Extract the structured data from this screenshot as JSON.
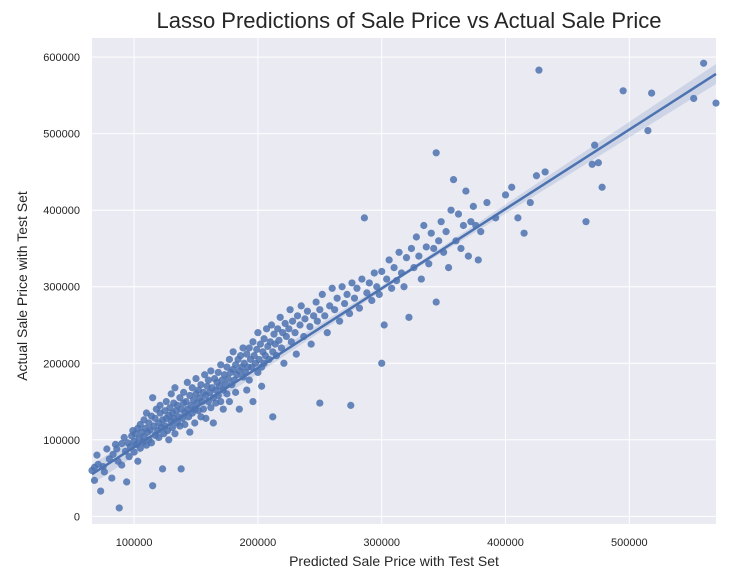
{
  "chart_data": {
    "type": "scatter",
    "title": "Lasso Predictions of Sale Price vs Actual Sale Price",
    "xlabel": "Predicted Sale Price with Test Set",
    "ylabel": "Actual Sale Price with Test Set",
    "xlim": [
      66000,
      570000
    ],
    "ylim": [
      -10000,
      625000
    ],
    "xticks": [
      100000,
      200000,
      300000,
      400000,
      500000
    ],
    "yticks": [
      0,
      100000,
      200000,
      300000,
      400000,
      500000,
      600000
    ],
    "grid": true,
    "legend": "none",
    "regression_line": {
      "x": [
        66000,
        570000
      ],
      "y": [
        55000,
        578000
      ]
    },
    "colors": {
      "point": "#4c72b0",
      "line": "#4c72b0",
      "band": "#4c72b0",
      "plot_bg": "#eaeaf2",
      "grid": "#ffffff"
    },
    "points": [
      [
        66000,
        60000
      ],
      [
        68000,
        64000
      ],
      [
        68000,
        47000
      ],
      [
        70000,
        80000
      ],
      [
        71000,
        68000
      ],
      [
        73000,
        33000
      ],
      [
        75000,
        65000
      ],
      [
        76000,
        58000
      ],
      [
        78000,
        88000
      ],
      [
        80000,
        75000
      ],
      [
        82000,
        50000
      ],
      [
        83000,
        81000
      ],
      [
        85000,
        94000
      ],
      [
        86000,
        88000
      ],
      [
        87000,
        72000
      ],
      [
        88000,
        11000
      ],
      [
        90000,
        95000
      ],
      [
        90000,
        67000
      ],
      [
        92000,
        103000
      ],
      [
        93000,
        85000
      ],
      [
        94000,
        45000
      ],
      [
        95000,
        96000
      ],
      [
        96000,
        78000
      ],
      [
        97000,
        91000
      ],
      [
        98000,
        105000
      ],
      [
        99000,
        112000
      ],
      [
        100000,
        98000
      ],
      [
        100000,
        84000
      ],
      [
        101000,
        108000
      ],
      [
        102000,
        94000
      ],
      [
        103000,
        115000
      ],
      [
        103000,
        72000
      ],
      [
        104000,
        102000
      ],
      [
        105000,
        120000
      ],
      [
        105000,
        89000
      ],
      [
        106000,
        110000
      ],
      [
        107000,
        97000
      ],
      [
        108000,
        126000
      ],
      [
        108000,
        104000
      ],
      [
        109000,
        115000
      ],
      [
        110000,
        93000
      ],
      [
        110000,
        135000
      ],
      [
        111000,
        110000
      ],
      [
        112000,
        122000
      ],
      [
        112000,
        100000
      ],
      [
        113000,
        113000
      ],
      [
        114000,
        131000
      ],
      [
        114000,
        96000
      ],
      [
        115000,
        155000
      ],
      [
        115000,
        40000
      ],
      [
        116000,
        118000
      ],
      [
        117000,
        106000
      ],
      [
        117000,
        128000
      ],
      [
        118000,
        140000
      ],
      [
        119000,
        112000
      ],
      [
        120000,
        122000
      ],
      [
        120000,
        103000
      ],
      [
        121000,
        135000
      ],
      [
        121000,
        145000
      ],
      [
        122000,
        116000
      ],
      [
        123000,
        126000
      ],
      [
        123000,
        62000
      ],
      [
        124000,
        108000
      ],
      [
        125000,
        138000
      ],
      [
        125000,
        118000
      ],
      [
        126000,
        128000
      ],
      [
        126000,
        150000
      ],
      [
        127000,
        112000
      ],
      [
        128000,
        132000
      ],
      [
        128000,
        100000
      ],
      [
        129000,
        142000
      ],
      [
        130000,
        124000
      ],
      [
        130000,
        160000
      ],
      [
        131000,
        116000
      ],
      [
        131000,
        135000
      ],
      [
        132000,
        148000
      ],
      [
        132000,
        128000
      ],
      [
        133000,
        108000
      ],
      [
        133000,
        168000
      ],
      [
        134000,
        138000
      ],
      [
        135000,
        122000
      ],
      [
        135000,
        145000
      ],
      [
        136000,
        130000
      ],
      [
        137000,
        155000
      ],
      [
        137000,
        118000
      ],
      [
        138000,
        140000
      ],
      [
        138000,
        62000
      ],
      [
        139000,
        128000
      ],
      [
        140000,
        148000
      ],
      [
        140000,
        162000
      ],
      [
        141000,
        135000
      ],
      [
        141000,
        120000
      ],
      [
        142000,
        150000
      ],
      [
        143000,
        140000
      ],
      [
        143000,
        175000
      ],
      [
        144000,
        130000
      ],
      [
        145000,
        158000
      ],
      [
        145000,
        110000
      ],
      [
        146000,
        145000
      ],
      [
        147000,
        135000
      ],
      [
        147000,
        168000
      ],
      [
        148000,
        152000
      ],
      [
        149000,
        140000
      ],
      [
        149000,
        122000
      ],
      [
        150000,
        160000
      ],
      [
        150000,
        180000
      ],
      [
        151000,
        148000
      ],
      [
        152000,
        138000
      ],
      [
        152000,
        165000
      ],
      [
        153000,
        155000
      ],
      [
        154000,
        130000
      ],
      [
        154000,
        172000
      ],
      [
        155000,
        150000
      ],
      [
        156000,
        162000
      ],
      [
        156000,
        140000
      ],
      [
        157000,
        185000
      ],
      [
        158000,
        158000
      ],
      [
        158000,
        128000
      ],
      [
        159000,
        170000
      ],
      [
        160000,
        150000
      ],
      [
        160000,
        178000
      ],
      [
        161000,
        162000
      ],
      [
        162000,
        142000
      ],
      [
        162000,
        190000
      ],
      [
        163000,
        168000
      ],
      [
        164000,
        155000
      ],
      [
        164000,
        122000
      ],
      [
        165000,
        180000
      ],
      [
        166000,
        165000
      ],
      [
        166000,
        148000
      ],
      [
        167000,
        175000
      ],
      [
        168000,
        188000
      ],
      [
        168000,
        158000
      ],
      [
        169000,
        170000
      ],
      [
        170000,
        150000
      ],
      [
        170000,
        198000
      ],
      [
        171000,
        178000
      ],
      [
        172000,
        165000
      ],
      [
        172000,
        140000
      ],
      [
        173000,
        185000
      ],
      [
        174000,
        172000
      ],
      [
        175000,
        195000
      ],
      [
        175000,
        160000
      ],
      [
        176000,
        180000
      ],
      [
        177000,
        150000
      ],
      [
        177000,
        205000
      ],
      [
        178000,
        188000
      ],
      [
        179000,
        172000
      ],
      [
        180000,
        192000
      ],
      [
        180000,
        215000
      ],
      [
        181000,
        178000
      ],
      [
        182000,
        198000
      ],
      [
        182000,
        162000
      ],
      [
        183000,
        185000
      ],
      [
        184000,
        205000
      ],
      [
        185000,
        190000
      ],
      [
        185000,
        140000
      ],
      [
        186000,
        210000
      ],
      [
        187000,
        195000
      ],
      [
        188000,
        182000
      ],
      [
        188000,
        220000
      ],
      [
        189000,
        200000
      ],
      [
        190000,
        188000
      ],
      [
        191000,
        212000
      ],
      [
        191000,
        165000
      ],
      [
        192000,
        195000
      ],
      [
        193000,
        220000
      ],
      [
        193000,
        178000
      ],
      [
        194000,
        205000
      ],
      [
        195000,
        195000
      ],
      [
        196000,
        228000
      ],
      [
        196000,
        150000
      ],
      [
        197000,
        210000
      ],
      [
        198000,
        200000
      ],
      [
        199000,
        218000
      ],
      [
        200000,
        188000
      ],
      [
        200000,
        240000
      ],
      [
        201000,
        205000
      ],
      [
        202000,
        225000
      ],
      [
        203000,
        195000
      ],
      [
        203000,
        170000
      ],
      [
        204000,
        215000
      ],
      [
        205000,
        232000
      ],
      [
        205000,
        200000
      ],
      [
        206000,
        210000
      ],
      [
        207000,
        245000
      ],
      [
        208000,
        222000
      ],
      [
        209000,
        205000
      ],
      [
        210000,
        228000
      ],
      [
        211000,
        250000
      ],
      [
        212000,
        215000
      ],
      [
        212000,
        130000
      ],
      [
        213000,
        238000
      ],
      [
        214000,
        225000
      ],
      [
        215000,
        210000
      ],
      [
        216000,
        245000
      ],
      [
        217000,
        230000
      ],
      [
        218000,
        260000
      ],
      [
        219000,
        220000
      ],
      [
        220000,
        240000
      ],
      [
        221000,
        200000
      ],
      [
        222000,
        252000
      ],
      [
        223000,
        235000
      ],
      [
        225000,
        245000
      ],
      [
        226000,
        270000
      ],
      [
        227000,
        228000
      ],
      [
        228000,
        255000
      ],
      [
        230000,
        240000
      ],
      [
        231000,
        212000
      ],
      [
        232000,
        262000
      ],
      [
        234000,
        250000
      ],
      [
        235000,
        275000
      ],
      [
        237000,
        235000
      ],
      [
        238000,
        258000
      ],
      [
        240000,
        268000
      ],
      [
        242000,
        248000
      ],
      [
        243000,
        225000
      ],
      [
        245000,
        262000
      ],
      [
        247000,
        280000
      ],
      [
        248000,
        255000
      ],
      [
        250000,
        148000
      ],
      [
        250000,
        270000
      ],
      [
        252000,
        290000
      ],
      [
        254000,
        262000
      ],
      [
        256000,
        240000
      ],
      [
        258000,
        275000
      ],
      [
        260000,
        298000
      ],
      [
        262000,
        270000
      ],
      [
        264000,
        285000
      ],
      [
        266000,
        255000
      ],
      [
        268000,
        300000
      ],
      [
        270000,
        278000
      ],
      [
        272000,
        290000
      ],
      [
        274000,
        265000
      ],
      [
        275000,
        145000
      ],
      [
        276000,
        305000
      ],
      [
        278000,
        285000
      ],
      [
        280000,
        298000
      ],
      [
        282000,
        272000
      ],
      [
        284000,
        310000
      ],
      [
        286000,
        390000
      ],
      [
        288000,
        292000
      ],
      [
        290000,
        305000
      ],
      [
        292000,
        282000
      ],
      [
        294000,
        318000
      ],
      [
        296000,
        300000
      ],
      [
        298000,
        290000
      ],
      [
        300000,
        200000
      ],
      [
        300000,
        320000
      ],
      [
        302000,
        250000
      ],
      [
        304000,
        310000
      ],
      [
        306000,
        335000
      ],
      [
        308000,
        298000
      ],
      [
        310000,
        325000
      ],
      [
        312000,
        308000
      ],
      [
        314000,
        345000
      ],
      [
        316000,
        318000
      ],
      [
        318000,
        300000
      ],
      [
        320000,
        338000
      ],
      [
        322000,
        260000
      ],
      [
        324000,
        350000
      ],
      [
        326000,
        325000
      ],
      [
        328000,
        365000
      ],
      [
        330000,
        340000
      ],
      [
        332000,
        310000
      ],
      [
        334000,
        380000
      ],
      [
        336000,
        352000
      ],
      [
        338000,
        330000
      ],
      [
        340000,
        370000
      ],
      [
        342000,
        350000
      ],
      [
        344000,
        475000
      ],
      [
        344000,
        280000
      ],
      [
        346000,
        360000
      ],
      [
        348000,
        385000
      ],
      [
        350000,
        345000
      ],
      [
        352000,
        372000
      ],
      [
        354000,
        325000
      ],
      [
        356000,
        400000
      ],
      [
        358000,
        440000
      ],
      [
        360000,
        360000
      ],
      [
        362000,
        395000
      ],
      [
        364000,
        350000
      ],
      [
        366000,
        380000
      ],
      [
        368000,
        425000
      ],
      [
        370000,
        340000
      ],
      [
        372000,
        385000
      ],
      [
        374000,
        405000
      ],
      [
        376000,
        380000
      ],
      [
        378000,
        335000
      ],
      [
        380000,
        372000
      ],
      [
        385000,
        410000
      ],
      [
        392000,
        390000
      ],
      [
        400000,
        420000
      ],
      [
        405000,
        430000
      ],
      [
        410000,
        390000
      ],
      [
        415000,
        370000
      ],
      [
        420000,
        410000
      ],
      [
        425000,
        445000
      ],
      [
        427000,
        583000
      ],
      [
        432000,
        450000
      ],
      [
        465000,
        385000
      ],
      [
        470000,
        460000
      ],
      [
        472000,
        485000
      ],
      [
        475000,
        462000
      ],
      [
        478000,
        430000
      ],
      [
        495000,
        556000
      ],
      [
        515000,
        504000
      ],
      [
        518000,
        553000
      ],
      [
        552000,
        546000
      ],
      [
        560000,
        592000
      ],
      [
        570000,
        540000
      ]
    ]
  }
}
